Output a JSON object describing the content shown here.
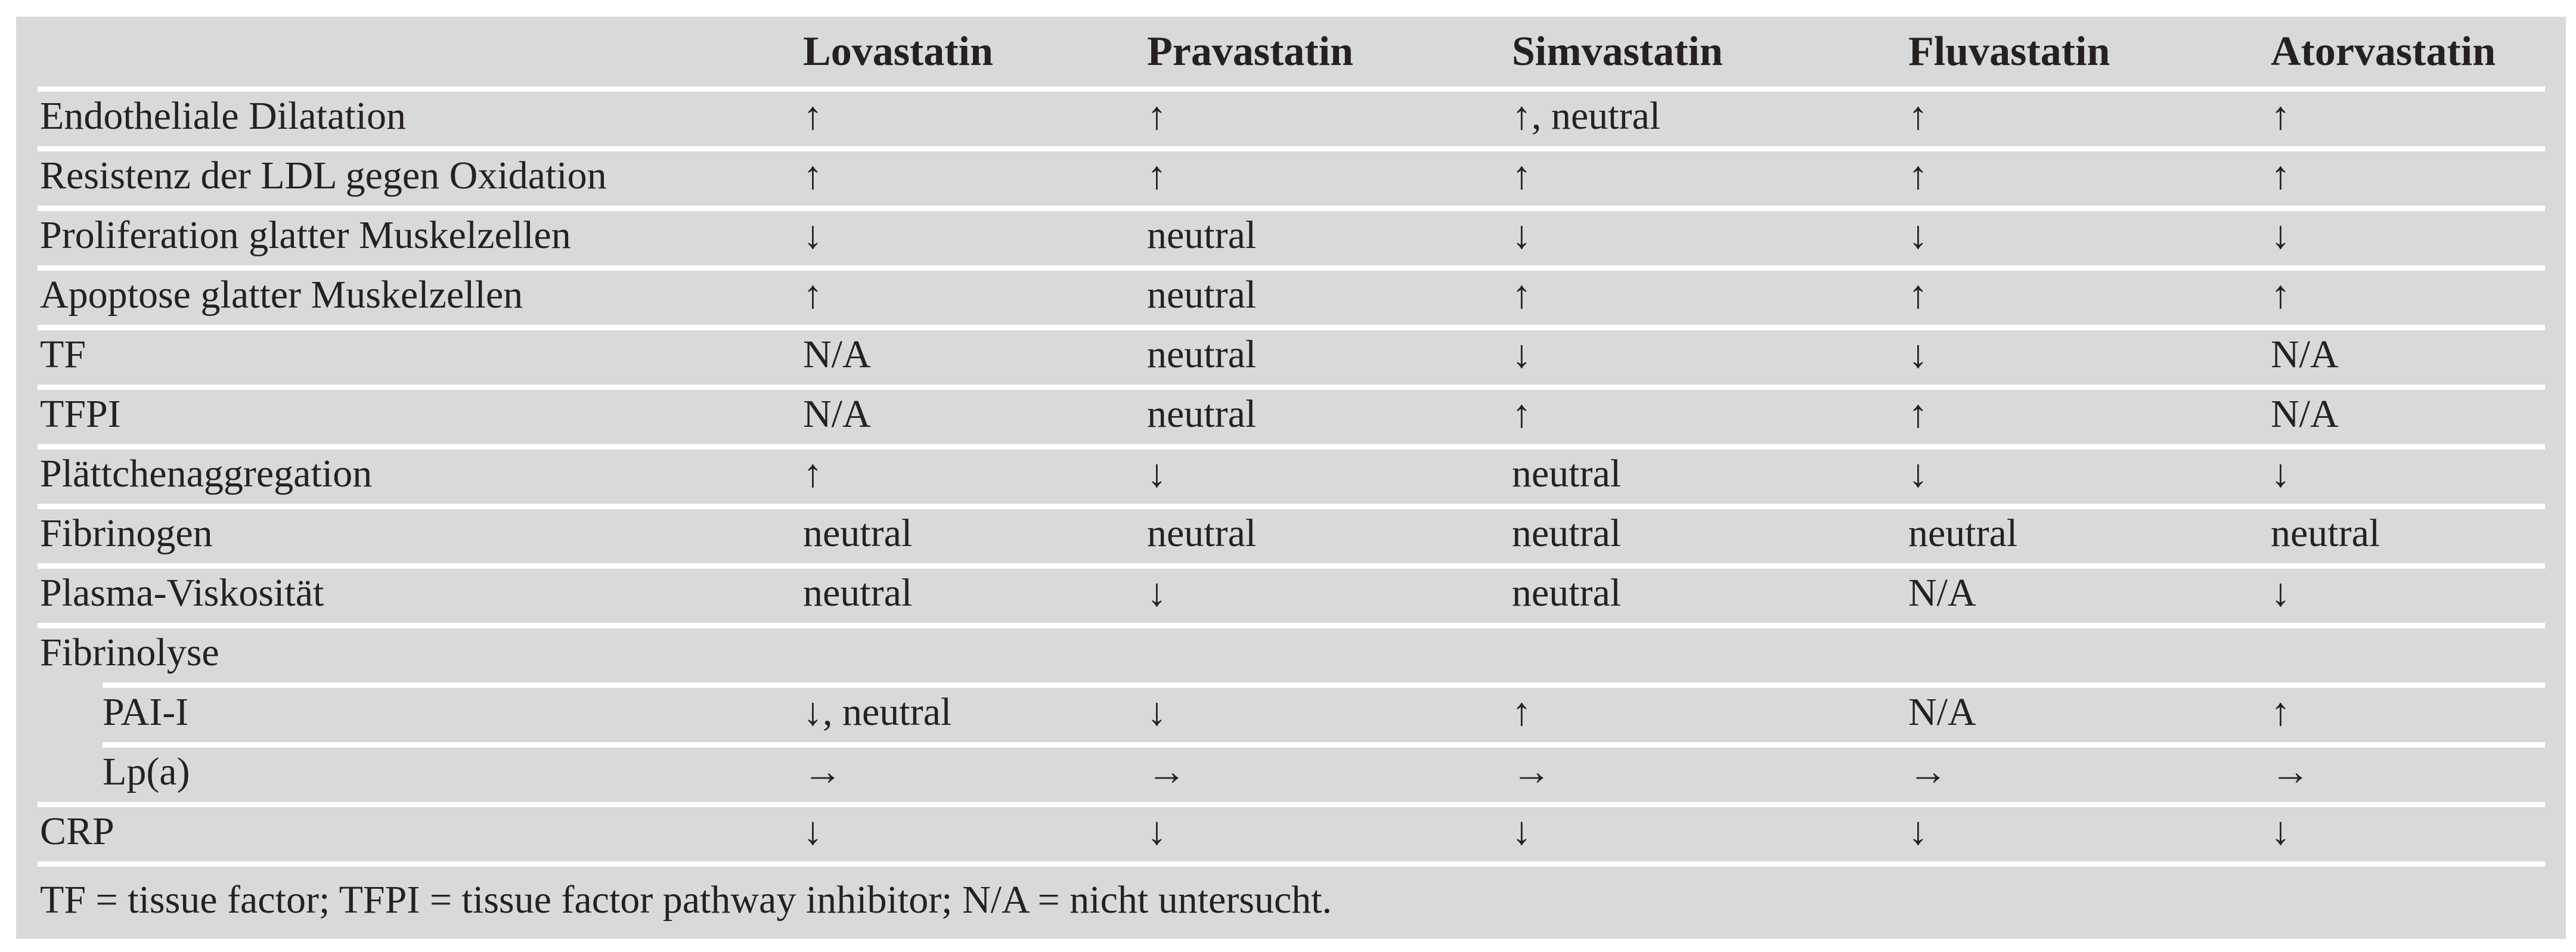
{
  "table": {
    "columns": [
      "Lovastatin",
      "Pravastatin",
      "Simvastatin",
      "Fluvastatin",
      "Atorvastatin"
    ],
    "rows": [
      {
        "label": "Endotheliale Dilatation",
        "indent": false,
        "values": [
          "↑",
          "↑",
          "↑, neutral",
          "↑",
          "↑"
        ]
      },
      {
        "label": "Resistenz der LDL gegen Oxidation",
        "indent": false,
        "values": [
          "↑",
          "↑",
          "↑",
          "↑",
          "↑"
        ]
      },
      {
        "label": "Proliferation glatter Muskelzellen",
        "indent": false,
        "values": [
          "↓",
          "neutral",
          "↓",
          "↓",
          "↓"
        ]
      },
      {
        "label": "Apoptose glatter Muskelzellen",
        "indent": false,
        "values": [
          "↑",
          "neutral",
          "↑",
          "↑",
          "↑"
        ]
      },
      {
        "label": "TF",
        "indent": false,
        "values": [
          "N/A",
          "neutral",
          "↓",
          "↓",
          "N/A"
        ]
      },
      {
        "label": "TFPI",
        "indent": false,
        "values": [
          "N/A",
          "neutral",
          "↑",
          "↑",
          "N/A"
        ]
      },
      {
        "label": "Plättchenaggregation",
        "indent": false,
        "values": [
          "↑",
          "↓",
          "neutral",
          "↓",
          "↓"
        ]
      },
      {
        "label": "Fibrinogen",
        "indent": false,
        "values": [
          "neutral",
          "neutral",
          "neutral",
          "neutral",
          "neutral"
        ]
      },
      {
        "label": "Plasma-Viskosität",
        "indent": false,
        "values": [
          "neutral",
          "↓",
          "neutral",
          "N/A",
          "↓"
        ]
      },
      {
        "label": "Fibrinolyse",
        "indent": false,
        "values": [
          "",
          "",
          "",
          "",
          ""
        ]
      },
      {
        "label": "PAI-I",
        "indent": true,
        "values": [
          "↓, neutral",
          "↓",
          "↑",
          "N/A",
          "↑"
        ]
      },
      {
        "label": "Lp(a)",
        "indent": true,
        "values": [
          "→",
          "→",
          "→",
          "→",
          "→"
        ]
      },
      {
        "label": "CRP",
        "indent": false,
        "values": [
          "↓",
          "↓",
          "↓",
          "↓",
          "↓"
        ]
      }
    ],
    "footnote": "TF = tissue factor; TFPI = tissue factor pathway inhibitor; N/A = nicht untersucht."
  },
  "colors": {
    "page_background": "#ffffff",
    "table_background": "#d8d9da",
    "separator": "#ffffff",
    "text": "#26211f"
  }
}
